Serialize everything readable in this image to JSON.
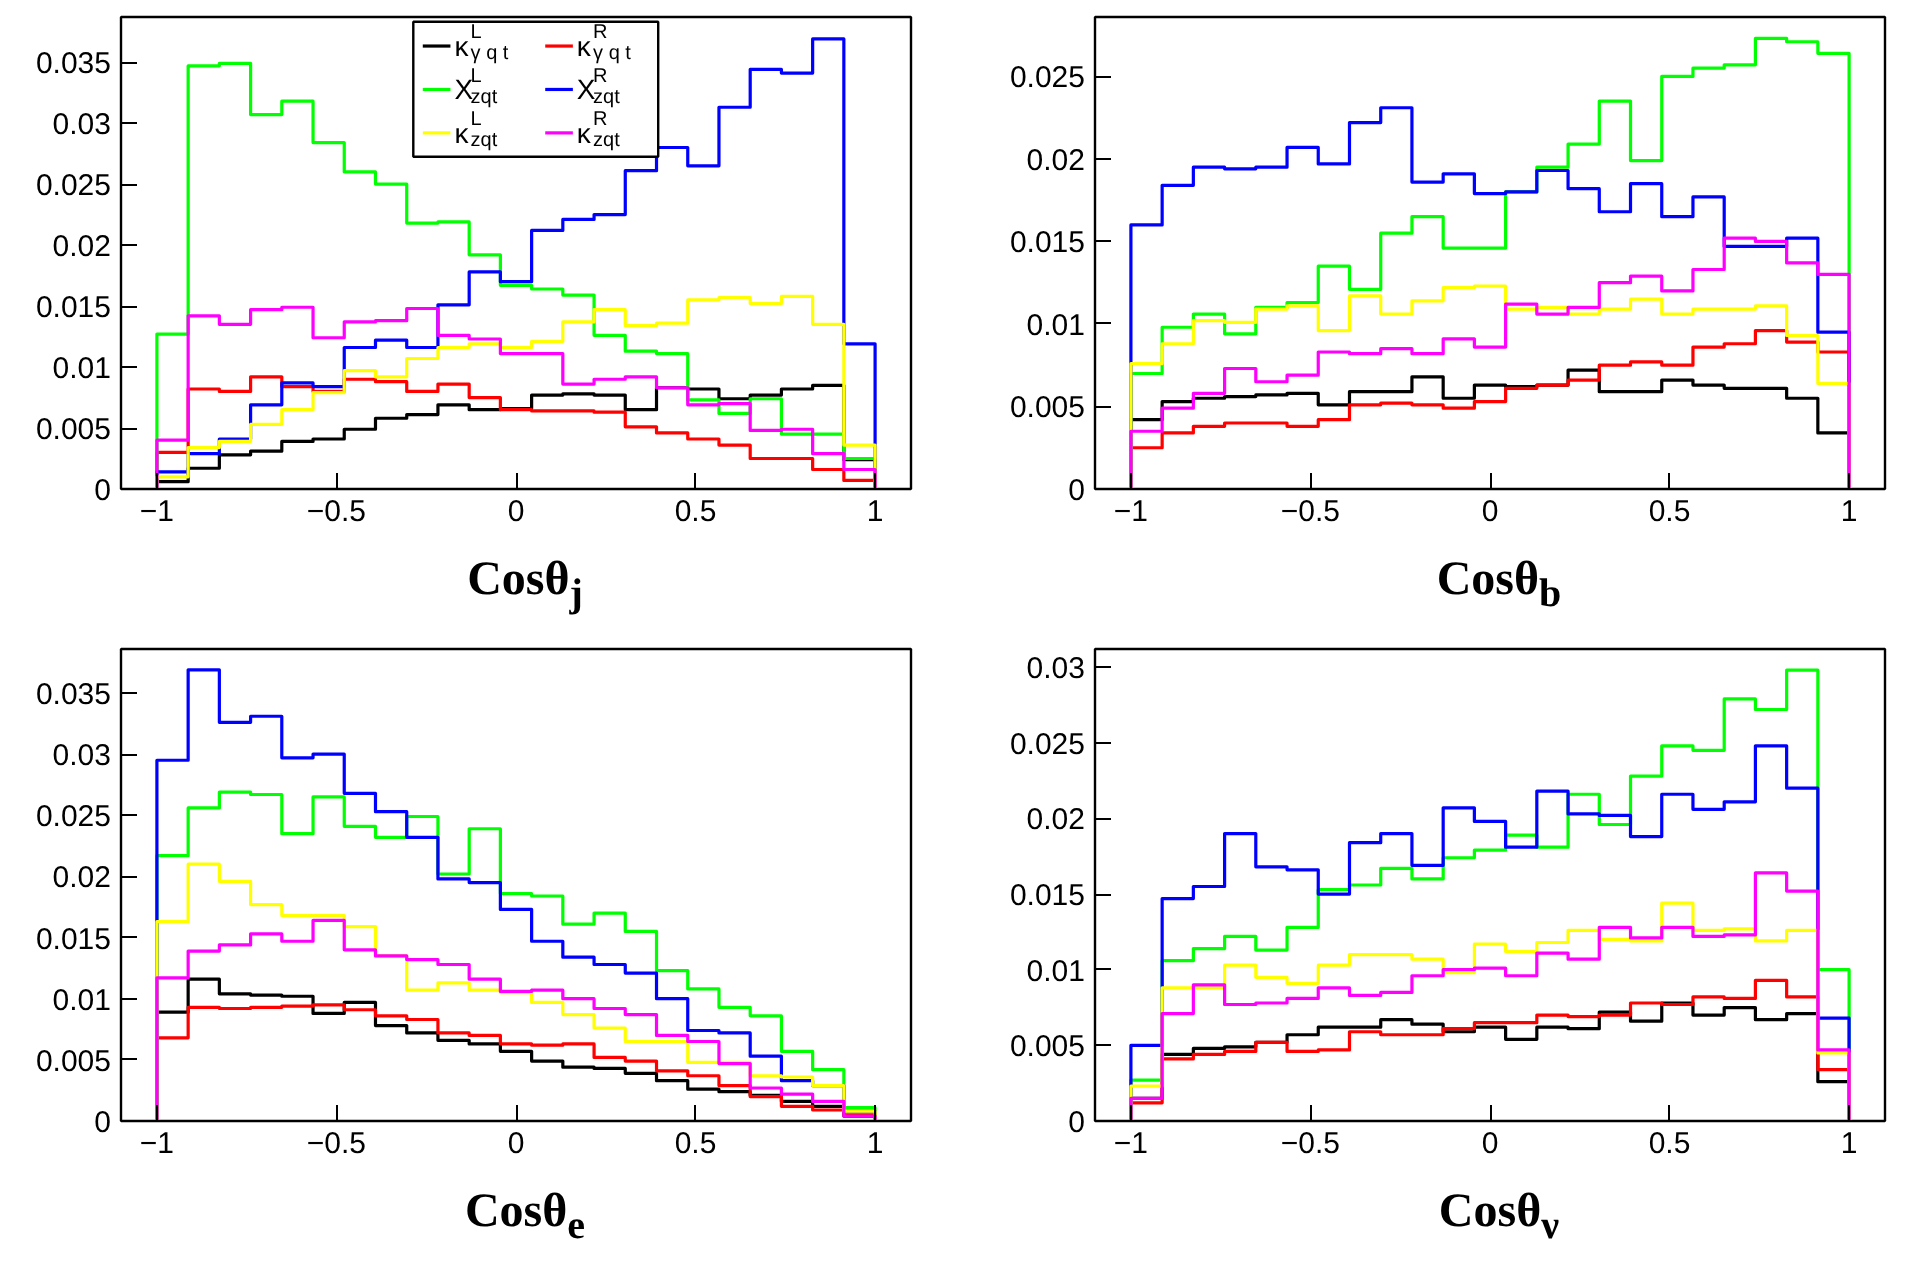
{
  "chart_data": [
    {
      "type": "histogram",
      "xlabel": "Cosθ$_{j}$",
      "legend": "top",
      "xlim": [
        -1.1,
        1.1
      ],
      "ylim": [
        0,
        0.0387
      ],
      "xticks": [
        -1,
        -0.5,
        0,
        0.5,
        1
      ],
      "yticks": [
        0,
        0.005,
        0.01,
        0.015,
        0.02,
        0.025,
        0.03,
        0.035
      ],
      "bins": [
        -1,
        -0.913,
        -0.8261,
        -0.7391,
        -0.6522,
        -0.5652,
        -0.4783,
        -0.3913,
        -0.3043,
        -0.2174,
        -0.1304,
        -0.0435,
        0.0435,
        0.1304,
        0.2174,
        0.3043,
        0.3913,
        0.4783,
        0.5652,
        0.6522,
        0.7391,
        0.8261,
        0.913,
        1
      ],
      "series": [
        {
          "name": "κ$^{L}$$_{γ q t}$",
          "color": "#000000",
          "values": [
            0.0006,
            0.0017,
            0.0028,
            0.0031,
            0.0039,
            0.0041,
            0.0049,
            0.0058,
            0.0061,
            0.0069,
            0.0065,
            0.0066,
            0.0077,
            0.0078,
            0.0077,
            0.0065,
            0.0083,
            0.0082,
            0.0074,
            0.0077,
            0.0082,
            0.0085,
            0.0024
          ]
        },
        {
          "name": "κ$^{R}$$_{γ q t}$",
          "color": "#ff0000",
          "values": [
            0.003,
            0.0082,
            0.008,
            0.0092,
            0.0084,
            0.008,
            0.009,
            0.0088,
            0.008,
            0.0086,
            0.0075,
            0.0065,
            0.0064,
            0.0064,
            0.0063,
            0.0051,
            0.0046,
            0.0041,
            0.0036,
            0.0025,
            0.0025,
            0.0016,
            0.0007
          ]
        },
        {
          "name": "X$^{L}$$_{zqt}$",
          "color": "#00ff00",
          "values": [
            0.0127,
            0.0347,
            0.0349,
            0.0307,
            0.0318,
            0.0284,
            0.026,
            0.025,
            0.0218,
            0.0219,
            0.0192,
            0.0167,
            0.0164,
            0.0159,
            0.0126,
            0.0113,
            0.0111,
            0.0073,
            0.0062,
            0.0074,
            0.0045,
            0.0045,
            0.0025
          ]
        },
        {
          "name": "X$^{R}$$_{zqt}$",
          "color": "#0000ff",
          "values": [
            0.0014,
            0.0029,
            0.0041,
            0.0069,
            0.0087,
            0.0084,
            0.0116,
            0.0122,
            0.0116,
            0.0151,
            0.0178,
            0.017,
            0.0212,
            0.0221,
            0.0225,
            0.0261,
            0.028,
            0.0265,
            0.0313,
            0.0344,
            0.0341,
            0.0369,
            0.0119
          ]
        },
        {
          "name": "κ$^{L}$$_{zqt}$",
          "color": "#ffff00",
          "values": [
            0.001,
            0.0034,
            0.0039,
            0.0053,
            0.0065,
            0.0079,
            0.0097,
            0.0092,
            0.0107,
            0.0116,
            0.0119,
            0.0116,
            0.0121,
            0.0137,
            0.0147,
            0.0134,
            0.0136,
            0.0155,
            0.0157,
            0.0152,
            0.0158,
            0.0135,
            0.0036
          ]
        },
        {
          "name": "κ$^{R}$$_{zqt}$",
          "color": "#ff00ff",
          "values": [
            0.004,
            0.0142,
            0.0135,
            0.0147,
            0.0149,
            0.0124,
            0.0137,
            0.0138,
            0.0148,
            0.0126,
            0.0123,
            0.0111,
            0.0111,
            0.0086,
            0.009,
            0.0092,
            0.0083,
            0.0069,
            0.007,
            0.0048,
            0.0049,
            0.0029,
            0.0016
          ]
        }
      ]
    },
    {
      "type": "histogram",
      "xlabel": "Cosθ$_{b}$",
      "xlim": [
        -1.1,
        1.1
      ],
      "ylim": [
        0,
        0.0286
      ],
      "xticks": [
        -1,
        -0.5,
        0,
        0.5,
        1
      ],
      "yticks": [
        0,
        0.005,
        0.01,
        0.015,
        0.02,
        0.025
      ],
      "bins": [
        -1,
        -0.913,
        -0.8261,
        -0.7391,
        -0.6522,
        -0.5652,
        -0.4783,
        -0.3913,
        -0.3043,
        -0.2174,
        -0.1304,
        -0.0435,
        0.0435,
        0.1304,
        0.2174,
        0.3043,
        0.3913,
        0.4783,
        0.5652,
        0.6522,
        0.7391,
        0.8261,
        0.913,
        1
      ],
      "series": [
        {
          "color": "#000000",
          "values": [
            0.0042,
            0.0053,
            0.0055,
            0.0056,
            0.0057,
            0.0058,
            0.0051,
            0.0059,
            0.0059,
            0.0068,
            0.0055,
            0.0063,
            0.0062,
            0.0063,
            0.0072,
            0.0059,
            0.0059,
            0.0066,
            0.0063,
            0.0061,
            0.0061,
            0.0055,
            0.0034
          ]
        },
        {
          "color": "#ff0000",
          "values": [
            0.0025,
            0.0034,
            0.0038,
            0.004,
            0.004,
            0.0038,
            0.0042,
            0.0051,
            0.0052,
            0.0051,
            0.0049,
            0.0053,
            0.0061,
            0.0063,
            0.0066,
            0.0075,
            0.0077,
            0.0075,
            0.0086,
            0.0088,
            0.0096,
            0.0089,
            0.0083
          ]
        },
        {
          "color": "#00ff00",
          "values": [
            0.007,
            0.0098,
            0.0106,
            0.0094,
            0.011,
            0.0113,
            0.0135,
            0.0121,
            0.0155,
            0.0165,
            0.0146,
            0.0146,
            0.018,
            0.0195,
            0.0209,
            0.0235,
            0.0199,
            0.025,
            0.0255,
            0.0257,
            0.0273,
            0.0271,
            0.0264
          ]
        },
        {
          "color": "#0000ff",
          "values": [
            0.016,
            0.0184,
            0.0195,
            0.0194,
            0.0195,
            0.0207,
            0.0197,
            0.0222,
            0.0231,
            0.0186,
            0.0191,
            0.0179,
            0.018,
            0.0193,
            0.0182,
            0.0168,
            0.0185,
            0.0165,
            0.0177,
            0.0147,
            0.0147,
            0.0152,
            0.0095
          ]
        },
        {
          "color": "#ffff00",
          "values": [
            0.0076,
            0.0088,
            0.0102,
            0.0101,
            0.0109,
            0.0111,
            0.0096,
            0.0117,
            0.0106,
            0.0114,
            0.0122,
            0.0123,
            0.0109,
            0.011,
            0.0106,
            0.0109,
            0.0115,
            0.0106,
            0.0109,
            0.0109,
            0.0111,
            0.0093,
            0.0064
          ]
        },
        {
          "color": "#ff00ff",
          "values": [
            0.0035,
            0.0049,
            0.0058,
            0.0073,
            0.0065,
            0.0069,
            0.0083,
            0.0082,
            0.0085,
            0.0082,
            0.0091,
            0.0086,
            0.0112,
            0.0106,
            0.011,
            0.0125,
            0.0129,
            0.012,
            0.0133,
            0.0152,
            0.015,
            0.0137,
            0.013
          ]
        }
      ]
    },
    {
      "type": "histogram",
      "xlabel": "Cosθ$_{e}$",
      "xlim": [
        -1.1,
        1.1
      ],
      "ylim": [
        0,
        0.0386
      ],
      "xticks": [
        -1,
        -0.5,
        0,
        0.5,
        1
      ],
      "yticks": [
        0,
        0.005,
        0.01,
        0.015,
        0.02,
        0.025,
        0.03,
        0.035
      ],
      "bins": [
        -1,
        -0.913,
        -0.8261,
        -0.7391,
        -0.6522,
        -0.5652,
        -0.4783,
        -0.3913,
        -0.3043,
        -0.2174,
        -0.1304,
        -0.0435,
        0.0435,
        0.1304,
        0.2174,
        0.3043,
        0.3913,
        0.4783,
        0.5652,
        0.6522,
        0.7391,
        0.8261,
        0.913,
        1
      ],
      "series": [
        {
          "color": "#000000",
          "values": [
            0.0089,
            0.0116,
            0.0104,
            0.0103,
            0.0102,
            0.0088,
            0.0097,
            0.0078,
            0.0072,
            0.0066,
            0.0063,
            0.0057,
            0.0049,
            0.0044,
            0.0043,
            0.0039,
            0.0033,
            0.0026,
            0.0024,
            0.0021,
            0.0016,
            0.0012,
            0.0004
          ]
        },
        {
          "color": "#ff0000",
          "values": [
            0.0068,
            0.0093,
            0.0092,
            0.0093,
            0.0094,
            0.0095,
            0.0091,
            0.0086,
            0.0083,
            0.0072,
            0.007,
            0.0063,
            0.0062,
            0.0063,
            0.0052,
            0.0049,
            0.0041,
            0.0037,
            0.0029,
            0.002,
            0.0012,
            0.0009,
            0.0005
          ]
        },
        {
          "color": "#00ff00",
          "values": [
            0.0217,
            0.0256,
            0.0269,
            0.0267,
            0.0235,
            0.0265,
            0.0241,
            0.0232,
            0.0249,
            0.0202,
            0.0239,
            0.0186,
            0.0184,
            0.0161,
            0.017,
            0.0155,
            0.0123,
            0.0108,
            0.0093,
            0.0086,
            0.0057,
            0.0042,
            0.0011
          ]
        },
        {
          "color": "#0000ff",
          "values": [
            0.0295,
            0.0369,
            0.0326,
            0.0331,
            0.0297,
            0.03,
            0.0268,
            0.0253,
            0.0232,
            0.0198,
            0.0195,
            0.0173,
            0.0147,
            0.0134,
            0.0128,
            0.0121,
            0.01,
            0.0074,
            0.0072,
            0.0053,
            0.0033,
            0.0029,
            0.0008
          ]
        },
        {
          "color": "#ffff00",
          "values": [
            0.0163,
            0.021,
            0.0196,
            0.0177,
            0.0168,
            0.0168,
            0.0159,
            0.0135,
            0.0107,
            0.0113,
            0.0107,
            0.0105,
            0.0097,
            0.0087,
            0.0076,
            0.0065,
            0.0065,
            0.0048,
            0.0048,
            0.0037,
            0.0036,
            0.0029,
            0.0008
          ]
        },
        {
          "color": "#ff00ff",
          "values": [
            0.0117,
            0.0139,
            0.0144,
            0.0153,
            0.0147,
            0.0164,
            0.014,
            0.0135,
            0.0132,
            0.0128,
            0.0116,
            0.0106,
            0.0107,
            0.01,
            0.0092,
            0.0087,
            0.007,
            0.0065,
            0.0047,
            0.0027,
            0.0022,
            0.0016,
            0.0004
          ]
        }
      ]
    },
    {
      "type": "histogram",
      "xlabel": "Cosθ$_{ν}$",
      "xlim": [
        -1.1,
        1.1
      ],
      "ylim": [
        0,
        0.0312
      ],
      "xticks": [
        -1,
        -0.5,
        0,
        0.5,
        1
      ],
      "yticks": [
        0,
        0.005,
        0.01,
        0.015,
        0.02,
        0.025,
        0.03
      ],
      "bins": [
        -1,
        -0.913,
        -0.8261,
        -0.7391,
        -0.6522,
        -0.5652,
        -0.4783,
        -0.3913,
        -0.3043,
        -0.2174,
        -0.1304,
        -0.0435,
        0.0435,
        0.1304,
        0.2174,
        0.3043,
        0.3913,
        0.4783,
        0.5652,
        0.6522,
        0.7391,
        0.8261,
        0.913,
        1
      ],
      "series": [
        {
          "color": "#000000",
          "values": [
            0.0015,
            0.0044,
            0.0048,
            0.0049,
            0.0052,
            0.0057,
            0.0062,
            0.0062,
            0.0067,
            0.0064,
            0.0059,
            0.0062,
            0.0054,
            0.0062,
            0.0061,
            0.0072,
            0.0066,
            0.0078,
            0.007,
            0.0075,
            0.0067,
            0.0071,
            0.0026
          ]
        },
        {
          "color": "#ff0000",
          "values": [
            0.0012,
            0.0041,
            0.0044,
            0.0046,
            0.0052,
            0.0046,
            0.0047,
            0.0059,
            0.0057,
            0.0057,
            0.0061,
            0.0065,
            0.0065,
            0.007,
            0.0069,
            0.007,
            0.0078,
            0.0077,
            0.0082,
            0.0081,
            0.0093,
            0.0082,
            0.0034
          ]
        },
        {
          "color": "#00ff00",
          "values": [
            0.0027,
            0.0106,
            0.0114,
            0.0122,
            0.0113,
            0.0128,
            0.0153,
            0.0156,
            0.0167,
            0.016,
            0.0174,
            0.0179,
            0.0189,
            0.0181,
            0.0216,
            0.0196,
            0.0228,
            0.0248,
            0.0245,
            0.0279,
            0.0272,
            0.0298,
            0.01
          ]
        },
        {
          "color": "#0000ff",
          "values": [
            0.005,
            0.0147,
            0.0155,
            0.019,
            0.0168,
            0.0166,
            0.015,
            0.0184,
            0.019,
            0.0169,
            0.0207,
            0.0198,
            0.0181,
            0.0218,
            0.0203,
            0.0202,
            0.0188,
            0.0216,
            0.0206,
            0.0211,
            0.0248,
            0.022,
            0.0068
          ]
        },
        {
          "color": "#ffff00",
          "values": [
            0.0023,
            0.0088,
            0.0088,
            0.0103,
            0.0095,
            0.0091,
            0.0103,
            0.011,
            0.011,
            0.0107,
            0.0098,
            0.0117,
            0.0112,
            0.0118,
            0.0126,
            0.012,
            0.0119,
            0.0144,
            0.0126,
            0.0127,
            0.0119,
            0.0126,
            0.0045
          ]
        },
        {
          "color": "#ff00ff",
          "values": [
            0.0015,
            0.0071,
            0.009,
            0.0077,
            0.0078,
            0.0081,
            0.0088,
            0.0083,
            0.0085,
            0.0096,
            0.01,
            0.0101,
            0.0096,
            0.0111,
            0.0107,
            0.0128,
            0.0121,
            0.0128,
            0.0122,
            0.0123,
            0.0164,
            0.0152,
            0.0047
          ]
        }
      ]
    }
  ]
}
